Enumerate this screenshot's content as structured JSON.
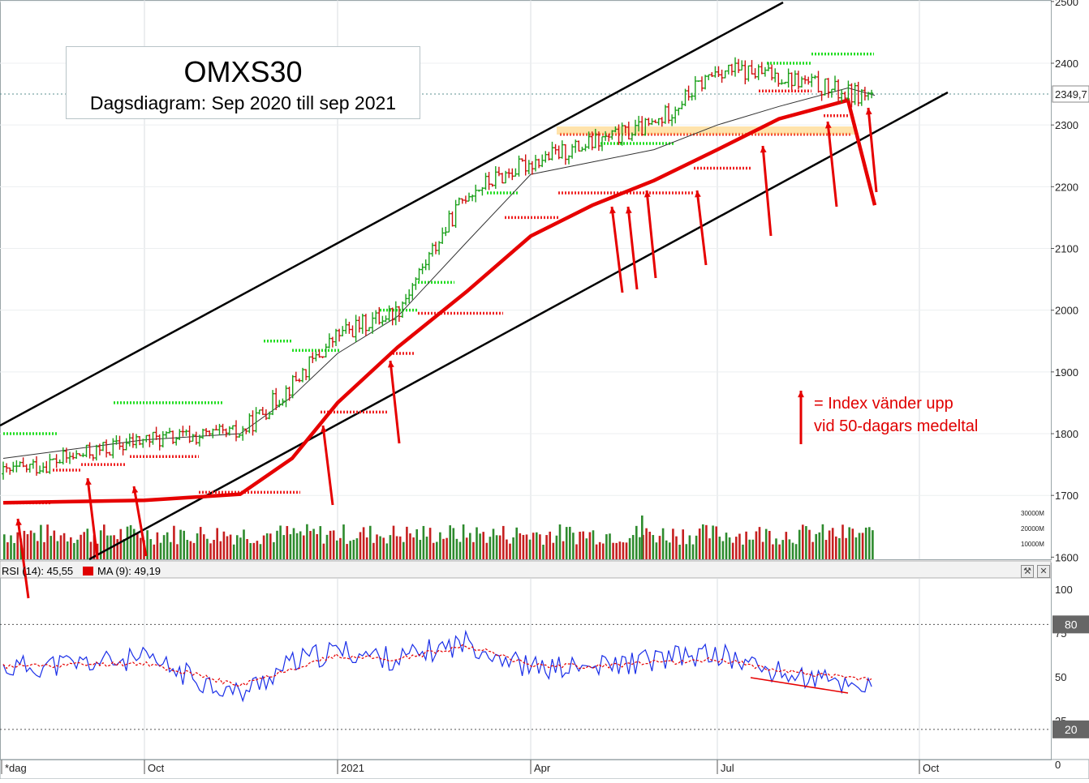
{
  "title": "OMXS30",
  "subtitle": "Dagsdiagram: Sep 2020 till sep 2021",
  "legend_note": {
    "line1": "= Index vänder upp",
    "line2": "vid 50-dagars medeltal"
  },
  "current_value_label": "2349,7",
  "rsi_label": "RSI (14): 45,55",
  "ma_label": "MA (9): 49,19",
  "rsi_levels": {
    "upper": "80",
    "lower": "20"
  },
  "volume_ticks": [
    "30000M",
    "20000M",
    "10000M"
  ],
  "x_tick_labels": [
    "*dag",
    "Oct",
    "2021",
    "Apr",
    "Jul",
    "Oct"
  ],
  "price_axis_labels": [
    "2500",
    "2400",
    "2300",
    "2200",
    "2100",
    "2000",
    "1900",
    "1800",
    "1700",
    "1600"
  ],
  "rsi_axis_labels": [
    "100",
    "75",
    "50",
    "25",
    "0"
  ],
  "colors": {
    "up": "#1aa01a",
    "down": "#d01010",
    "ma200": "#e60000",
    "ma50": "#333333",
    "channel": "#000000",
    "rsi": "#1a2ee8",
    "rsi_ma": "#e60000",
    "arrow": "#e60000",
    "resistance": "#22dd22",
    "support": "#ee2222"
  },
  "chart_data": [
    {
      "type": "candlestick",
      "title": "OMXS30",
      "subtitle": "Dagsdiagram: Sep 2020 till sep 2021",
      "x": [
        "2020-09",
        "2020-10",
        "2020-11",
        "2020-12",
        "2021-01",
        "2021-02",
        "2021-03",
        "2021-04",
        "2021-05",
        "2021-06",
        "2021-07",
        "2021-08",
        "2021-09"
      ],
      "series": [
        {
          "close": [
            1735,
            1790,
            1800,
            1880,
            1960,
            2000,
            2190,
            2240,
            2270,
            2300,
            2390,
            2380,
            2350
          ]
        },
        {
          "values": [
            1688,
            1692,
            1702,
            1760,
            1850,
            1940,
            2030,
            2120,
            2170,
            2210,
            2260,
            2310,
            2340
          ]
        },
        {
          "values": [
            1760,
            1790,
            1800,
            1860,
            1930,
            1990,
            2110,
            2220,
            2240,
            2260,
            2300,
            2330,
            2360
          ]
        }
      ],
      "ylim": [
        1600,
        2500
      ],
      "grid": true
    },
    {
      "type": "line",
      "x": [
        "2020-09",
        "2020-10",
        "2020-11",
        "2020-12",
        "2021-01",
        "2021-02",
        "2021-03",
        "2021-04",
        "2021-05",
        "2021-06",
        "2021-07",
        "2021-08",
        "2021-09"
      ],
      "series": [
        {
          "name": "RSI (14): 45,55",
          "values": [
            55,
            60,
            40,
            58,
            65,
            60,
            70,
            55,
            55,
            60,
            63,
            52,
            45.55
          ]
        },
        {
          "name": "MA (9): 49,19",
          "values": [
            56,
            58,
            45,
            55,
            62,
            60,
            68,
            57,
            56,
            58,
            60,
            54,
            49.19
          ]
        }
      ],
      "ylim": [
        0,
        100
      ],
      "reference_lines": [
        80,
        20
      ]
    }
  ]
}
